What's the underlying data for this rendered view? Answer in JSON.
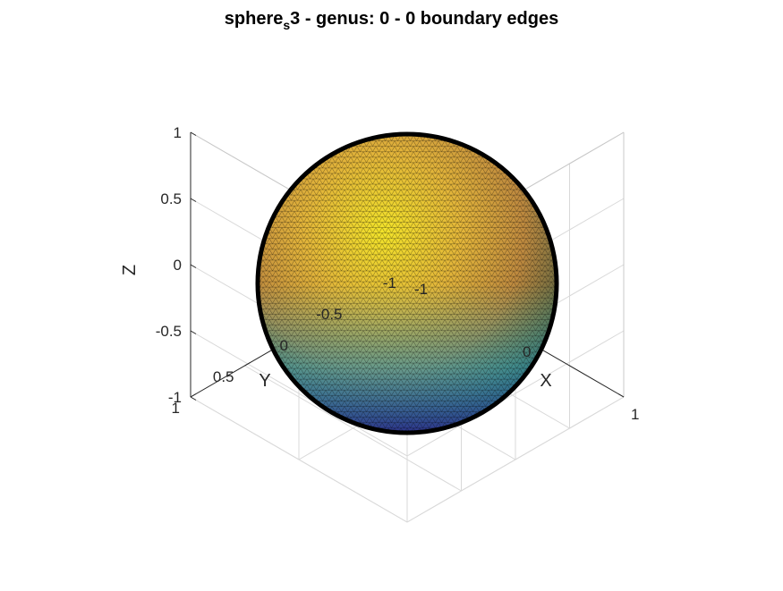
{
  "chart_data": {
    "type": "surface",
    "title": {
      "prefix": "sphere",
      "subscript": "s",
      "suffix": "3 - genus: 0 - 0 boundary edges"
    },
    "xlabel": "X",
    "ylabel": "Y",
    "zlabel": "Z",
    "xlim": [
      -1,
      1
    ],
    "ylim": [
      -1,
      1
    ],
    "zlim": [
      -1,
      1
    ],
    "xticks": [
      "-1",
      "0",
      "1"
    ],
    "yticks": [
      "-1",
      "-0.5",
      "0",
      "0.5",
      "1"
    ],
    "zticks": [
      "-1",
      "-0.5",
      "0",
      "0.5",
      "1"
    ],
    "surface": {
      "shape": "unit sphere",
      "center": [
        0,
        0,
        0
      ],
      "radius": 1,
      "colormap": "parula",
      "mesh": "triangulated",
      "edge_color": "#000000"
    },
    "grid": true,
    "box": "3d axes box, isometric view"
  }
}
